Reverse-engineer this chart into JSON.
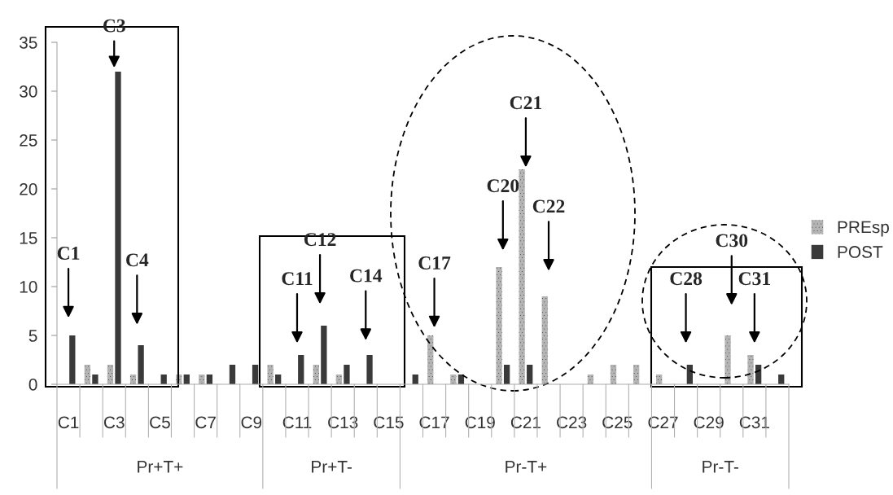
{
  "chart_data": {
    "type": "bar",
    "categories": [
      "C1",
      null,
      "C3",
      null,
      "C5",
      null,
      "C7",
      null,
      "C9",
      null,
      "C11",
      null,
      "C13",
      null,
      "C15",
      null,
      "C17",
      null,
      "C19",
      null,
      "C21",
      null,
      "C23",
      null,
      "C25",
      null,
      "C27",
      null,
      "C29",
      null,
      "C31",
      null
    ],
    "series": [
      {
        "name": "PREsp",
        "color": "#b4b4b4",
        "values": [
          0,
          2,
          2,
          1,
          0,
          1,
          1,
          0,
          0,
          2,
          0,
          2,
          1,
          0,
          0,
          0,
          5,
          1,
          0,
          12,
          22,
          9,
          0,
          1,
          2,
          2,
          1,
          0,
          0,
          5,
          3,
          0
        ]
      },
      {
        "name": "POST",
        "color": "#3a3a3a",
        "values": [
          5,
          1,
          32,
          4,
          1,
          1,
          1,
          2,
          2,
          1,
          3,
          6,
          2,
          3,
          0,
          1,
          0,
          1,
          0,
          2,
          2,
          0,
          0,
          0,
          0,
          0,
          0,
          2,
          0,
          0,
          2,
          1
        ]
      }
    ],
    "ylim": [
      0,
      35
    ],
    "yticks": [
      0,
      5,
      10,
      15,
      20,
      25,
      30,
      35
    ],
    "grid": false,
    "legend": "right",
    "annotations": [
      "C1",
      "C3",
      "C4",
      "C11",
      "C12",
      "C14",
      "C17",
      "C20",
      "C21",
      "C22",
      "C28",
      "C30",
      "C31",
      "Pr+T+",
      "Pr+T-",
      "Pr-T+",
      "Pr-T-"
    ]
  }
}
